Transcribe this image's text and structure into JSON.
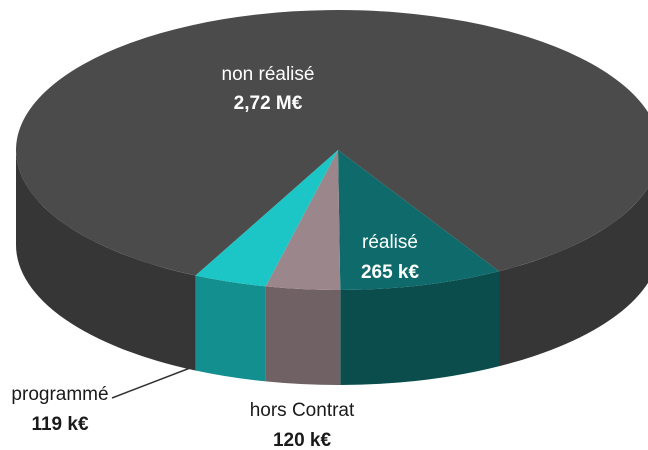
{
  "chart_data": {
    "type": "pie3d",
    "categories": [
      "réalisé",
      "hors Contrat",
      "programmé",
      "non réalisé"
    ],
    "values": [
      265,
      120,
      119,
      2720
    ],
    "value_labels": [
      "265 k€",
      "120 k€",
      "119 k€",
      "2,72 M€"
    ],
    "colors": [
      "#0f6b6b",
      "#9b878b",
      "#1cc6c6",
      "#4b4b4b"
    ]
  }
}
